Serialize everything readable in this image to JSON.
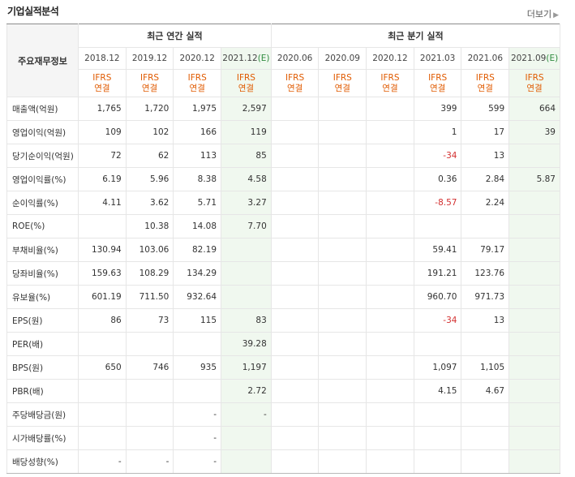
{
  "section": {
    "title": "기업실적분석",
    "more_label": "더보기"
  },
  "table": {
    "row_header_label": "주요재무정보",
    "groups": {
      "annual": "최근 연간 실적",
      "quarterly": "최근 분기 실적"
    },
    "periods": [
      {
        "label": "2018.12",
        "est": ""
      },
      {
        "label": "2019.12",
        "est": ""
      },
      {
        "label": "2020.12",
        "est": ""
      },
      {
        "label": "2021.12",
        "est": "(E)"
      },
      {
        "label": "2020.06",
        "est": ""
      },
      {
        "label": "2020.09",
        "est": ""
      },
      {
        "label": "2020.12",
        "est": ""
      },
      {
        "label": "2021.03",
        "est": ""
      },
      {
        "label": "2021.06",
        "est": ""
      },
      {
        "label": "2021.09",
        "est": "(E)"
      }
    ],
    "accounting_line1": "IFRS",
    "accounting_line2": "연결",
    "rows": [
      {
        "label": "매출액(억원)",
        "values": [
          "1,765",
          "1,720",
          "1,975",
          "2,597",
          "",
          "",
          "",
          "399",
          "599",
          "664"
        ]
      },
      {
        "label": "영업이익(억원)",
        "values": [
          "109",
          "102",
          "166",
          "119",
          "",
          "",
          "",
          "1",
          "17",
          "39"
        ]
      },
      {
        "label": "당기순이익(억원)",
        "values": [
          "72",
          "62",
          "113",
          "85",
          "",
          "",
          "",
          "-34",
          "13",
          ""
        ]
      },
      {
        "label": "영업이익률(%)",
        "values": [
          "6.19",
          "5.96",
          "8.38",
          "4.58",
          "",
          "",
          "",
          "0.36",
          "2.84",
          "5.87"
        ]
      },
      {
        "label": "순이익률(%)",
        "values": [
          "4.11",
          "3.62",
          "5.71",
          "3.27",
          "",
          "",
          "",
          "-8.57",
          "2.24",
          ""
        ]
      },
      {
        "label": "ROE(%)",
        "values": [
          "",
          "10.38",
          "14.08",
          "7.70",
          "",
          "",
          "",
          "",
          "",
          ""
        ]
      },
      {
        "label": "부채비율(%)",
        "values": [
          "130.94",
          "103.06",
          "82.19",
          "",
          "",
          "",
          "",
          "59.41",
          "79.17",
          ""
        ]
      },
      {
        "label": "당좌비율(%)",
        "values": [
          "159.63",
          "108.29",
          "134.29",
          "",
          "",
          "",
          "",
          "191.21",
          "123.76",
          ""
        ]
      },
      {
        "label": "유보율(%)",
        "values": [
          "601.19",
          "711.50",
          "932.64",
          "",
          "",
          "",
          "",
          "960.70",
          "971.73",
          ""
        ]
      },
      {
        "label": "EPS(원)",
        "values": [
          "86",
          "73",
          "115",
          "83",
          "",
          "",
          "",
          "-34",
          "13",
          ""
        ]
      },
      {
        "label": "PER(배)",
        "values": [
          "",
          "",
          "",
          "39.28",
          "",
          "",
          "",
          "",
          "",
          ""
        ]
      },
      {
        "label": "BPS(원)",
        "values": [
          "650",
          "746",
          "935",
          "1,197",
          "",
          "",
          "",
          "1,097",
          "1,105",
          ""
        ]
      },
      {
        "label": "PBR(배)",
        "values": [
          "",
          "",
          "",
          "2.72",
          "",
          "",
          "",
          "4.15",
          "4.67",
          ""
        ]
      },
      {
        "label": "주당배당금(원)",
        "values": [
          "",
          "",
          "-",
          "-",
          "",
          "",
          "",
          "",
          "",
          ""
        ]
      },
      {
        "label": "시가배당률(%)",
        "values": [
          "",
          "",
          "-",
          "",
          "",
          "",
          "",
          "",
          "",
          ""
        ]
      },
      {
        "label": "배당성향(%)",
        "values": [
          "-",
          "-",
          "-",
          "",
          "",
          "",
          "",
          "",
          "",
          ""
        ]
      }
    ]
  },
  "colors": {
    "accent": "#e05a00",
    "negative": "#d32f2f",
    "estimate_bg": "#f0f8ef",
    "estimate_mark": "#2e8b3e"
  }
}
